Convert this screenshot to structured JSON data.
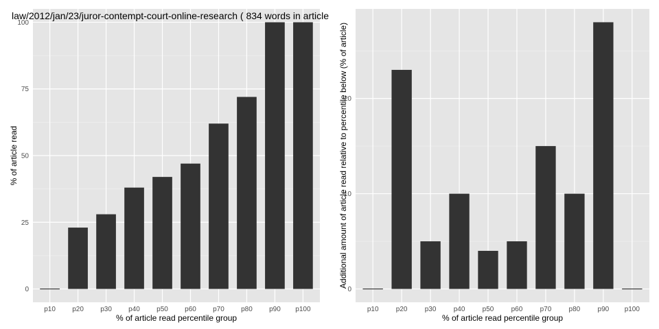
{
  "chart_data": [
    {
      "type": "bar",
      "title": "law/2012/jan/23/juror-contempt-court-online-research ( 834 words in article",
      "xlabel": "% of article read percentile group",
      "ylabel": "% of article read",
      "categories": [
        "p10",
        "p20",
        "p30",
        "p40",
        "p50",
        "p60",
        "p70",
        "p80",
        "p90",
        "p100"
      ],
      "values": [
        0,
        23,
        28,
        38,
        42,
        47,
        62,
        72,
        100,
        100
      ],
      "yticks": [
        "0",
        "25",
        "50",
        "75",
        "100"
      ],
      "ylim": [
        -5,
        105
      ],
      "grid": true
    },
    {
      "type": "bar",
      "title": "",
      "xlabel": "% of article read percentile group",
      "ylabel": "Additional amount of article read relative to percentile below (% of article)",
      "categories": [
        "p10",
        "p20",
        "p30",
        "p40",
        "p50",
        "p60",
        "p70",
        "p80",
        "p90",
        "p100"
      ],
      "values": [
        0,
        23,
        5,
        10,
        4,
        5,
        15,
        10,
        28,
        0
      ],
      "yticks": [
        "0",
        "10",
        "20"
      ],
      "ylim": [
        -1.4,
        29.4
      ],
      "grid": true
    }
  ],
  "colors": {
    "panel": "#e5e5e5",
    "grid_major": "#ffffff",
    "grid_minor": "#f2f2f2",
    "bar": "#333333"
  }
}
